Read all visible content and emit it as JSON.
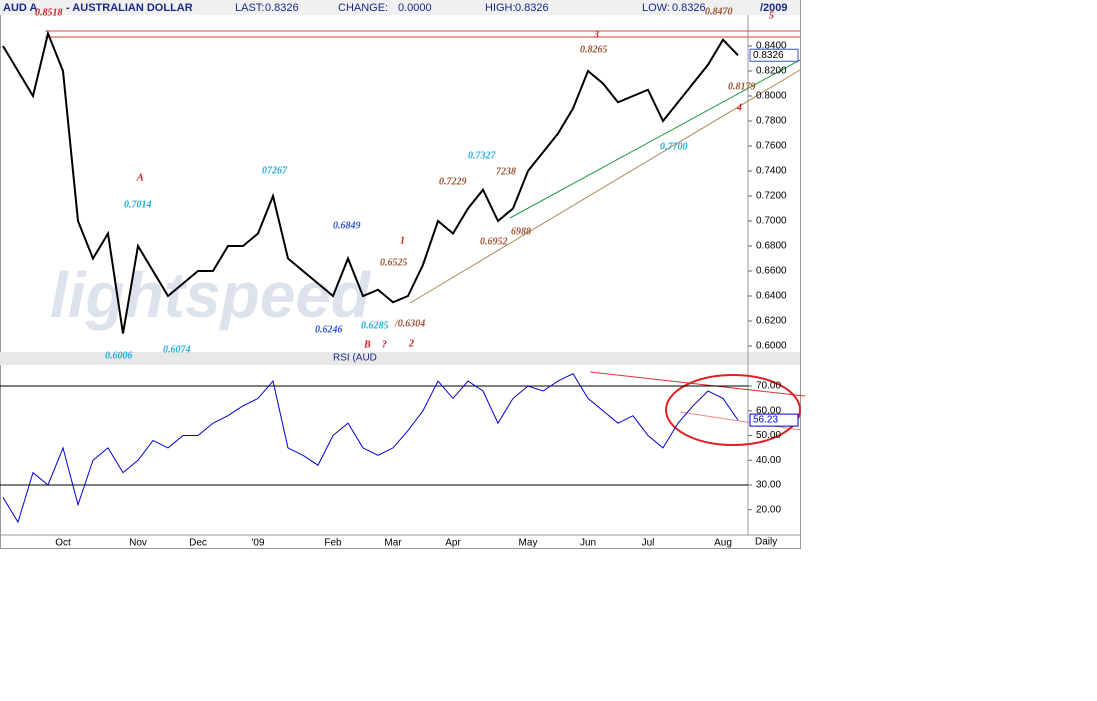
{
  "chart_data": [
    {
      "type": "line",
      "symbol": "AUD A",
      "title": "- AUSTRALIAN DOLLAR",
      "header_stats": [
        {
          "label": "LAST:",
          "value": "0.8326"
        },
        {
          "label": "CHANGE:",
          "value": "0.0000"
        },
        {
          "label": "HIGH:",
          "value": "0.8326"
        },
        {
          "label": "LOW:",
          "value": "0.8326"
        }
      ],
      "date_text": "/2009",
      "period": "Daily",
      "watermark": "lightspeed",
      "categories": [
        null,
        null,
        null,
        null,
        "Oct",
        null,
        null,
        null,
        null,
        "Nov",
        null,
        null,
        null,
        "Dec",
        null,
        null,
        null,
        "'09",
        null,
        null,
        null,
        null,
        "Feb",
        null,
        null,
        null,
        "Mar",
        null,
        null,
        null,
        "Apr",
        null,
        null,
        null,
        null,
        "May",
        null,
        null,
        null,
        "Jun",
        null,
        null,
        null,
        "Jul",
        null,
        null,
        null,
        null,
        "Aug",
        null
      ],
      "series": [
        {
          "name": "AUD",
          "color": "#000000",
          "values": [
            0.84,
            0.82,
            0.8,
            0.85,
            0.82,
            0.7,
            0.67,
            0.69,
            0.61,
            0.68,
            0.66,
            0.64,
            0.65,
            0.66,
            0.66,
            0.68,
            0.68,
            0.69,
            0.72,
            0.67,
            0.66,
            0.65,
            0.64,
            0.67,
            0.64,
            0.645,
            0.635,
            0.64,
            0.665,
            0.7,
            0.69,
            0.71,
            0.725,
            0.7,
            0.71,
            0.74,
            0.755,
            0.77,
            0.79,
            0.82,
            0.81,
            0.795,
            0.8,
            0.805,
            0.78,
            0.795,
            0.81,
            0.825,
            0.845,
            0.8326
          ]
        }
      ],
      "ylim": [
        0.5952,
        0.8648
      ],
      "yticks": [
        {
          "value": 0.6,
          "label": "0.6000"
        },
        {
          "value": 0.62,
          "label": "0.6200"
        },
        {
          "value": 0.64,
          "label": "0.6400"
        },
        {
          "value": 0.66,
          "label": "0.6600"
        },
        {
          "value": 0.68,
          "label": "0.6800"
        },
        {
          "value": 0.7,
          "label": "0.7000"
        },
        {
          "value": 0.72,
          "label": "0.7200"
        },
        {
          "value": 0.74,
          "label": "0.7400"
        },
        {
          "value": 0.76,
          "label": "0.7600"
        },
        {
          "value": 0.78,
          "label": "0.7800"
        },
        {
          "value": 0.8,
          "label": "0.8000"
        },
        {
          "value": 0.82,
          "label": "0.8200"
        },
        {
          "value": 0.84,
          "label": "0.8400"
        }
      ],
      "annotations": [
        {
          "text": "0.8518",
          "color": "#cc2222"
        },
        {
          "text": "A",
          "color": "#cc2222"
        },
        {
          "text": "0.7014",
          "color": "#22aadd"
        },
        {
          "text": "07267",
          "color": "#22aadd"
        },
        {
          "text": "0.6849",
          "color": "#3355cc"
        },
        {
          "text": "1",
          "color": "#cc2222"
        },
        {
          "text": "0.6525",
          "color": "#995533"
        },
        {
          "text": "0.6246",
          "color": "#3355cc"
        },
        {
          "text": "0.6285",
          "color": "#22aadd"
        },
        {
          "text": "/0.6304",
          "color": "#995533"
        },
        {
          "text": "B",
          "color": "#cc2222"
        },
        {
          "text": "?",
          "color": "#cc2222"
        },
        {
          "text": "2",
          "color": "#cc2222"
        },
        {
          "text": "0.6006",
          "color": "#22aadd"
        },
        {
          "text": "0.6074",
          "color": "#22aadd"
        },
        {
          "text": "0.7327",
          "color": "#22aadd"
        },
        {
          "text": "0.7229",
          "color": "#995533"
        },
        {
          "text": "7238",
          "color": "#995533"
        },
        {
          "text": "0.6952",
          "color": "#995533"
        },
        {
          "text": "6988",
          "color": "#995533"
        },
        {
          "text": "3",
          "color": "#cc2222"
        },
        {
          "text": "0.8265",
          "color": "#995533"
        },
        {
          "text": "0.7700",
          "color": "#22aadd"
        },
        {
          "text": "0.8179",
          "color": "#995533"
        },
        {
          "text": "4",
          "color": "#cc2222"
        },
        {
          "text": "0.8470",
          "color": "#995533"
        },
        {
          "text": "5",
          "color": "#cc2222"
        }
      ]
    },
    {
      "type": "line",
      "series": [
        {
          "name": "RSI (AUD",
          "color": "#0000cc",
          "values": [
            25,
            15,
            35,
            30,
            45,
            22,
            40,
            45,
            35,
            40,
            48,
            45,
            50,
            50,
            55,
            58,
            62,
            65,
            72,
            45,
            42,
            38,
            50,
            55,
            45,
            42,
            45,
            52,
            60,
            72,
            65,
            72,
            68,
            55,
            65,
            70,
            68,
            72,
            75,
            65,
            60,
            55,
            58,
            50,
            45,
            55,
            62,
            68,
            65,
            56.23
          ]
        }
      ],
      "ylim": [
        9.8,
        78.5
      ],
      "yticks": [
        {
          "value": 20,
          "label": "20.00"
        },
        {
          "value": 30,
          "label": "30.00"
        },
        {
          "value": 40,
          "label": "40.00"
        },
        {
          "value": 50,
          "label": "50.00"
        },
        {
          "value": 60,
          "label": "60.00"
        },
        {
          "value": 70,
          "label": "70.00"
        }
      ],
      "reference_lines": [
        30,
        70
      ]
    }
  ]
}
